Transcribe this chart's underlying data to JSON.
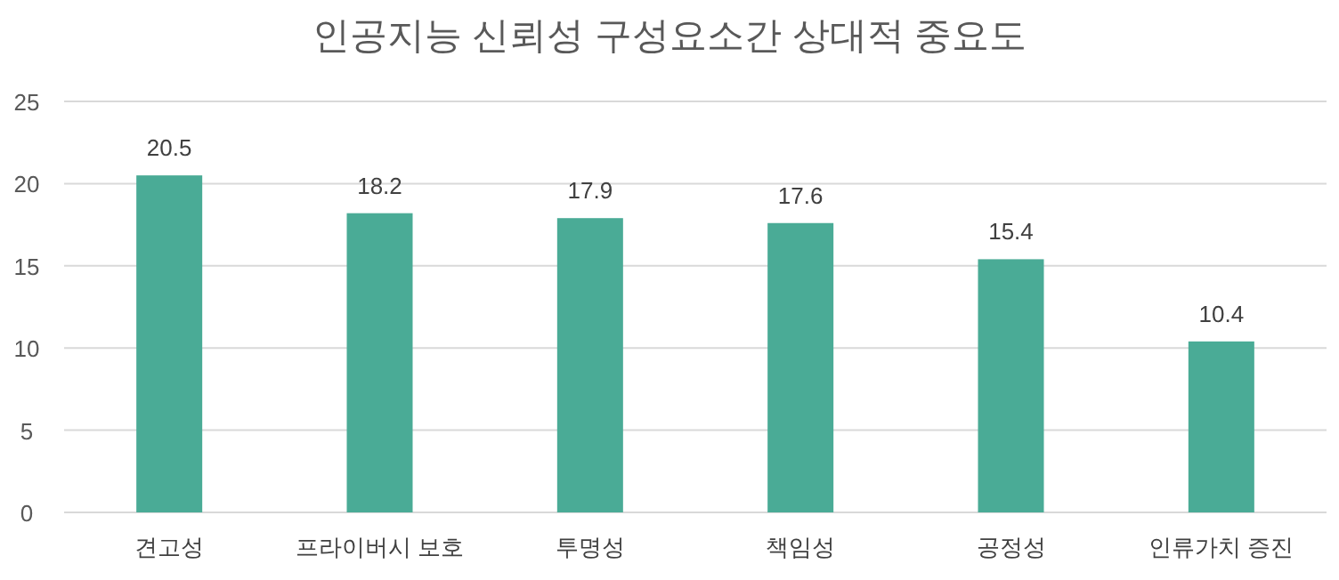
{
  "chart_data": {
    "type": "bar",
    "title": "인공지능 신뢰성 구성요소간 상대적 중요도",
    "categories": [
      "견고성",
      "프라이버시 보호",
      "투명성",
      "책임성",
      "공정성",
      "인류가치 증진"
    ],
    "values": [
      20.5,
      18.2,
      17.9,
      17.6,
      15.4,
      10.4
    ],
    "color": "#4aab96",
    "ylim": [
      0,
      25
    ],
    "yticks": [
      0,
      5,
      10,
      15,
      20,
      25
    ],
    "grid": "y",
    "data_labels": true
  }
}
